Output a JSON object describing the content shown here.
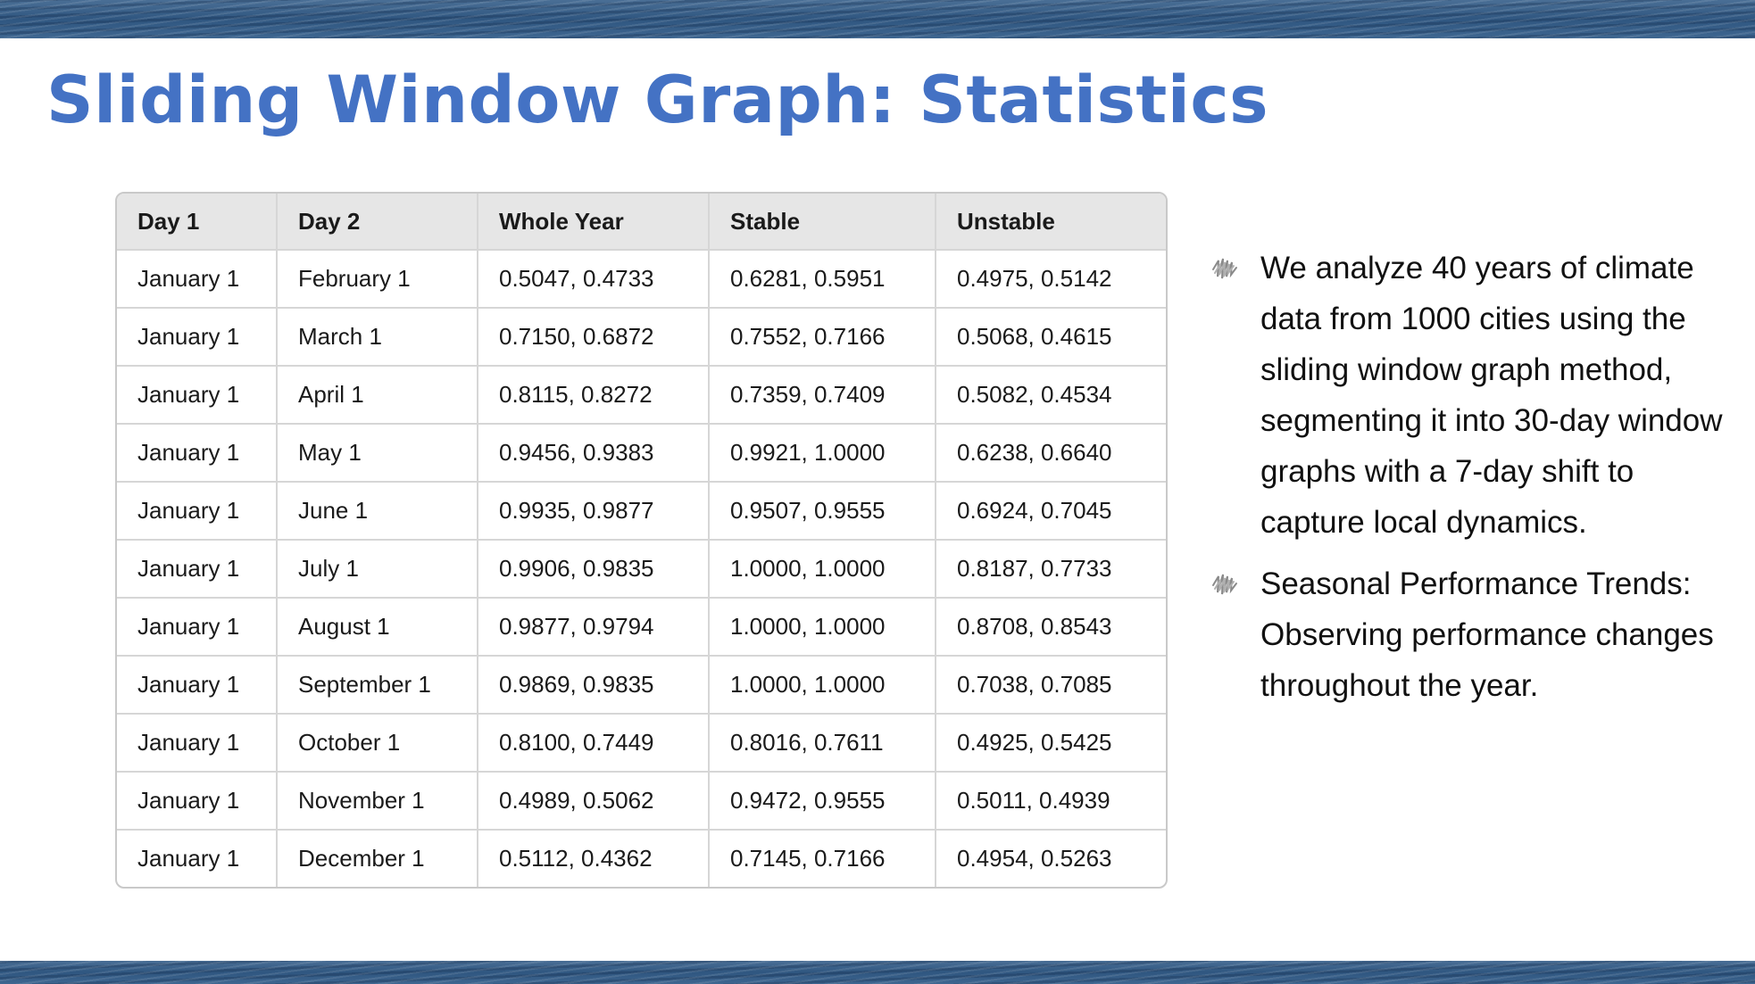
{
  "slide": {
    "title": "Sliding Window Graph: Statistics"
  },
  "table": {
    "headers": [
      "Day 1",
      "Day 2",
      "Whole Year",
      "Stable",
      "Unstable"
    ],
    "rows": [
      [
        "January 1",
        "February 1",
        "0.5047, 0.4733",
        "0.6281, 0.5951",
        "0.4975, 0.5142"
      ],
      [
        "January 1",
        "March 1",
        "0.7150, 0.6872",
        "0.7552, 0.7166",
        "0.5068, 0.4615"
      ],
      [
        "January 1",
        "April 1",
        "0.8115, 0.8272",
        "0.7359, 0.7409",
        "0.5082, 0.4534"
      ],
      [
        "January 1",
        "May 1",
        "0.9456, 0.9383",
        "0.9921, 1.0000",
        "0.6238, 0.6640"
      ],
      [
        "January 1",
        "June 1",
        "0.9935, 0.9877",
        "0.9507, 0.9555",
        "0.6924, 0.7045"
      ],
      [
        "January 1",
        "July 1",
        "0.9906, 0.9835",
        "1.0000, 1.0000",
        "0.8187, 0.7733"
      ],
      [
        "January 1",
        "August 1",
        "0.9877, 0.9794",
        "1.0000, 1.0000",
        "0.8708, 0.8543"
      ],
      [
        "January 1",
        "September 1",
        "0.9869, 0.9835",
        "1.0000, 1.0000",
        "0.7038, 0.7085"
      ],
      [
        "January 1",
        "October 1",
        "0.8100, 0.7449",
        "0.8016, 0.7611",
        "0.4925, 0.5425"
      ],
      [
        "January 1",
        "November 1",
        "0.4989, 0.5062",
        "0.9472, 0.9555",
        "0.5011, 0.4939"
      ],
      [
        "January 1",
        "December 1",
        "0.5112, 0.4362",
        "0.7145, 0.7166",
        "0.4954, 0.5263"
      ]
    ]
  },
  "bullets": [
    {
      "icon": "scribble-bullet-icon",
      "text": "We analyze 40 years of climate data from 1000 cities using the sliding window graph method, segmenting it into 30-day window graphs with a 7-day shift to capture local dynamics."
    },
    {
      "icon": "scribble-bullet-icon",
      "text": "Seasonal Performance Trends: Observing performance changes throughout the year."
    }
  ],
  "colors": {
    "title": "#4472c4",
    "header_bg": "#e6e6e6",
    "border": "#d6d6d6",
    "band": "#2f5680"
  }
}
